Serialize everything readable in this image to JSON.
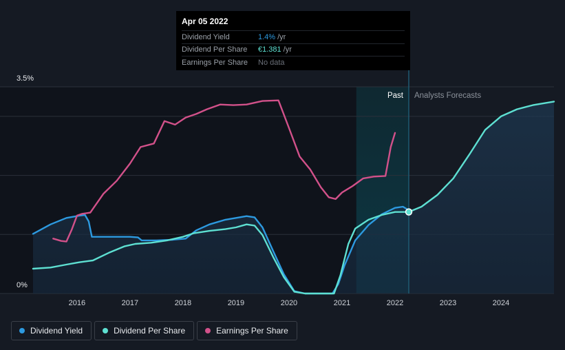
{
  "tooltip": {
    "date": "Apr 05 2022",
    "rows": [
      {
        "label": "Dividend Yield",
        "value": "1.4%",
        "unit": "/yr"
      },
      {
        "label": "Dividend Per Share",
        "value": "€1.381",
        "unit": "/yr"
      },
      {
        "label": "Earnings Per Share",
        "value": "No data",
        "unit": ""
      }
    ]
  },
  "regions": {
    "past_label": "Past",
    "forecast_label": "Analysts Forecasts"
  },
  "legend": [
    {
      "label": "Dividend Yield",
      "color": "#2d9ae0"
    },
    {
      "label": "Dividend Per Share",
      "color": "#5ee0d2"
    },
    {
      "label": "Earnings Per Share",
      "color": "#d2518a"
    }
  ],
  "chart_data": {
    "type": "line",
    "title": "",
    "xlabel": "",
    "ylabel": "",
    "y_axis_labels": [
      "3.5%",
      "0%"
    ],
    "ylim": [
      0,
      3.5
    ],
    "xlim": [
      2015.17,
      2025.0
    ],
    "x_ticks": [
      2016,
      2017,
      2018,
      2019,
      2020,
      2021,
      2022,
      2023,
      2024
    ],
    "x_tick_labels": [
      "2016",
      "2017",
      "2018",
      "2019",
      "2020",
      "2021",
      "2022",
      "2023",
      "2024"
    ],
    "highlight_start": 2021.27,
    "divider_x": 2022.26,
    "series": [
      {
        "name": "Dividend Yield",
        "color": "#2d9ae0",
        "points": [
          [
            2015.17,
            1.01
          ],
          [
            2015.5,
            1.17
          ],
          [
            2015.8,
            1.28
          ],
          [
            2016.05,
            1.32
          ],
          [
            2016.15,
            1.33
          ],
          [
            2016.22,
            1.22
          ],
          [
            2016.28,
            0.96
          ],
          [
            2016.5,
            0.96
          ],
          [
            2017.0,
            0.96
          ],
          [
            2017.15,
            0.95
          ],
          [
            2017.22,
            0.9
          ],
          [
            2017.5,
            0.9
          ],
          [
            2017.8,
            0.91
          ],
          [
            2018.05,
            0.93
          ],
          [
            2018.25,
            1.07
          ],
          [
            2018.5,
            1.17
          ],
          [
            2018.8,
            1.25
          ],
          [
            2019.0,
            1.28
          ],
          [
            2019.2,
            1.31
          ],
          [
            2019.35,
            1.29
          ],
          [
            2019.5,
            1.12
          ],
          [
            2019.7,
            0.72
          ],
          [
            2019.9,
            0.33
          ],
          [
            2020.1,
            0.04
          ],
          [
            2020.3,
            0.0
          ],
          [
            2020.6,
            0.0
          ],
          [
            2020.82,
            0.0
          ],
          [
            2020.93,
            0.16
          ],
          [
            2021.05,
            0.48
          ],
          [
            2021.25,
            0.9
          ],
          [
            2021.5,
            1.16
          ],
          [
            2021.75,
            1.34
          ],
          [
            2022.0,
            1.45
          ],
          [
            2022.15,
            1.47
          ],
          [
            2022.26,
            1.41
          ]
        ]
      },
      {
        "name": "Dividend Per Share",
        "color": "#5ee0d2",
        "points": [
          [
            2015.17,
            0.42
          ],
          [
            2015.5,
            0.44
          ],
          [
            2015.8,
            0.49
          ],
          [
            2016.05,
            0.53
          ],
          [
            2016.3,
            0.56
          ],
          [
            2016.6,
            0.69
          ],
          [
            2016.9,
            0.8
          ],
          [
            2017.1,
            0.84
          ],
          [
            2017.4,
            0.86
          ],
          [
            2017.7,
            0.9
          ],
          [
            2018.0,
            0.96
          ],
          [
            2018.2,
            1.02
          ],
          [
            2018.5,
            1.06
          ],
          [
            2018.8,
            1.09
          ],
          [
            2019.0,
            1.12
          ],
          [
            2019.2,
            1.17
          ],
          [
            2019.35,
            1.15
          ],
          [
            2019.5,
            0.99
          ],
          [
            2019.7,
            0.62
          ],
          [
            2019.9,
            0.28
          ],
          [
            2020.1,
            0.03
          ],
          [
            2020.3,
            0.0
          ],
          [
            2020.6,
            0.0
          ],
          [
            2020.85,
            0.0
          ],
          [
            2020.97,
            0.31
          ],
          [
            2021.12,
            0.84
          ],
          [
            2021.25,
            1.1
          ],
          [
            2021.5,
            1.25
          ],
          [
            2021.75,
            1.33
          ],
          [
            2022.0,
            1.38
          ],
          [
            2022.26,
            1.381
          ],
          [
            2022.5,
            1.47
          ],
          [
            2022.8,
            1.67
          ],
          [
            2023.1,
            1.95
          ],
          [
            2023.4,
            2.35
          ],
          [
            2023.7,
            2.77
          ],
          [
            2024.0,
            3.0
          ],
          [
            2024.3,
            3.12
          ],
          [
            2024.6,
            3.19
          ],
          [
            2025.0,
            3.25
          ]
        ]
      },
      {
        "name": "Earnings Per Share",
        "color": "#d2518a",
        "points": [
          [
            2015.55,
            0.93
          ],
          [
            2015.7,
            0.89
          ],
          [
            2015.8,
            0.88
          ],
          [
            2015.9,
            1.08
          ],
          [
            2016.0,
            1.32
          ],
          [
            2016.1,
            1.35
          ],
          [
            2016.25,
            1.37
          ],
          [
            2016.5,
            1.69
          ],
          [
            2016.75,
            1.91
          ],
          [
            2017.0,
            2.2
          ],
          [
            2017.2,
            2.48
          ],
          [
            2017.45,
            2.54
          ],
          [
            2017.65,
            2.92
          ],
          [
            2017.85,
            2.86
          ],
          [
            2018.05,
            2.98
          ],
          [
            2018.25,
            3.04
          ],
          [
            2018.45,
            3.12
          ],
          [
            2018.7,
            3.2
          ],
          [
            2018.95,
            3.19
          ],
          [
            2019.2,
            3.2
          ],
          [
            2019.5,
            3.26
          ],
          [
            2019.8,
            3.27
          ],
          [
            2020.0,
            2.8
          ],
          [
            2020.2,
            2.32
          ],
          [
            2020.4,
            2.1
          ],
          [
            2020.6,
            1.8
          ],
          [
            2020.75,
            1.63
          ],
          [
            2020.88,
            1.6
          ],
          [
            2021.0,
            1.71
          ],
          [
            2021.2,
            1.82
          ],
          [
            2021.4,
            1.95
          ],
          [
            2021.6,
            1.98
          ],
          [
            2021.82,
            1.99
          ],
          [
            2021.92,
            2.48
          ],
          [
            2022.0,
            2.72
          ]
        ]
      }
    ]
  }
}
